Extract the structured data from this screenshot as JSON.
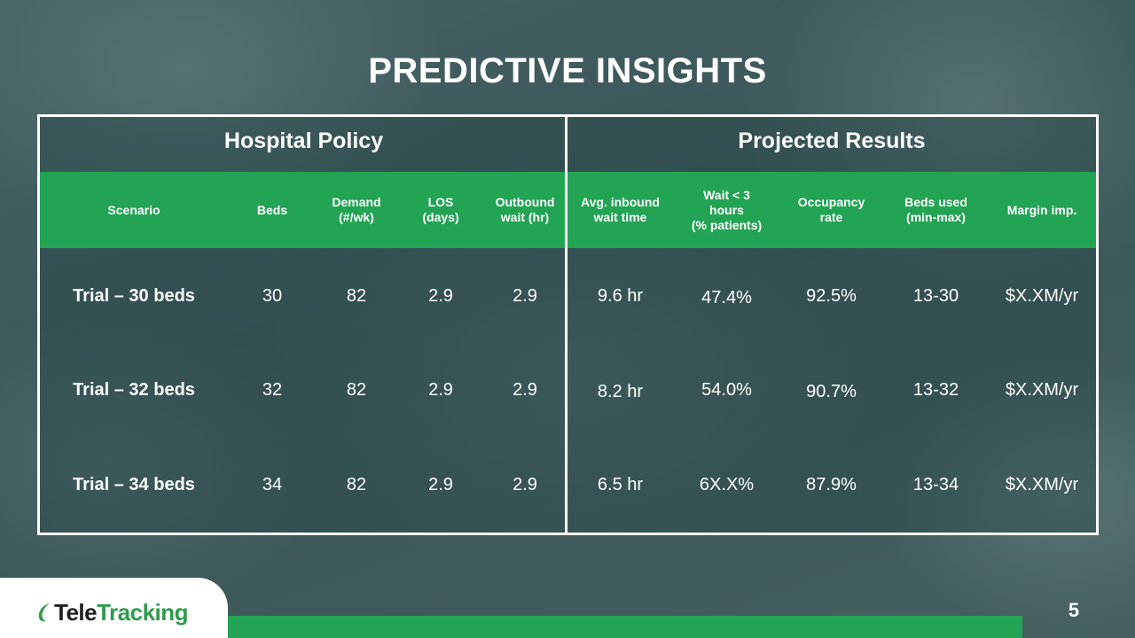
{
  "slide": {
    "title": "PREDICTIVE INSIGHTS",
    "page_number": "5"
  },
  "table": {
    "groups": [
      "Hospital Policy",
      "Projected Results"
    ],
    "columns": [
      "Scenario",
      "Beds",
      "Demand\n(#/wk)",
      "LOS\n(days)",
      "Outbound\nwait (hr)",
      "Avg. inbound\nwait time",
      "Wait < 3\nhours\n(% patients)",
      "Occupancy\nrate",
      "Beds used\n(min-max)",
      "Margin imp."
    ],
    "rows": [
      [
        "Trial – 30 beds",
        "30",
        "82",
        "2.9",
        "2.9",
        "9.6 hr",
        "47.4%",
        "92.5%",
        "13-30",
        "$X.XM/yr"
      ],
      [
        "Trial – 32 beds",
        "32",
        "82",
        "2.9",
        "2.9",
        "8.2 hr",
        "54.0%",
        "90.7%",
        "13-32",
        "$X.XM/yr"
      ],
      [
        "Trial – 34 beds",
        "34",
        "82",
        "2.9",
        "2.9",
        "6.5 hr",
        "6X.X%",
        "87.9%",
        "13-34",
        "$X.XM/yr"
      ]
    ]
  },
  "logo": {
    "text_part1": "Tele",
    "text_part2": "Tracking",
    "brand_color": "#2e9c4a"
  },
  "colors": {
    "accent_green": "#23a455",
    "background": "#3f5a5c",
    "text": "#ffffff"
  }
}
